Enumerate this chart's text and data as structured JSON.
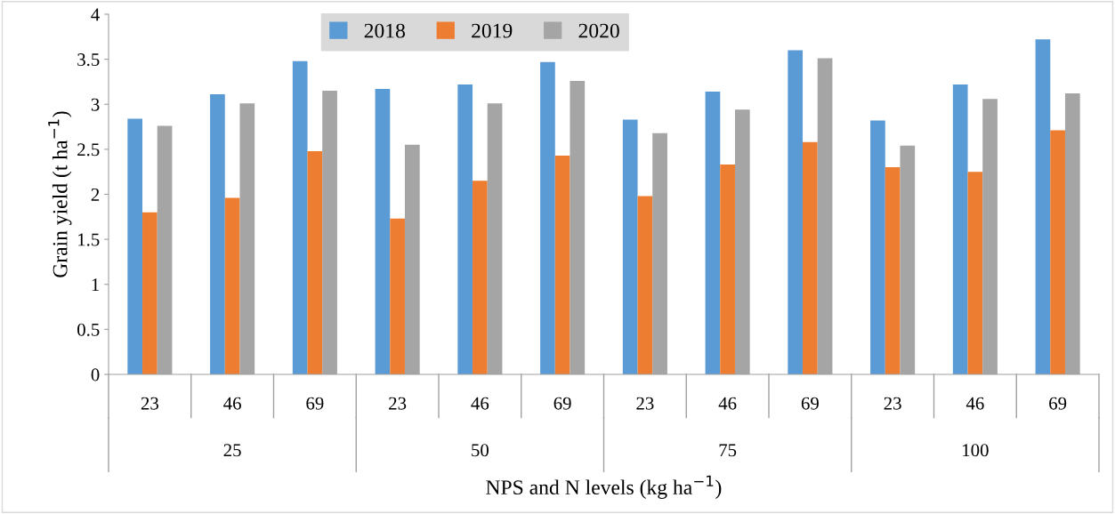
{
  "chart_data": {
    "type": "bar",
    "xlabel": "NPS and N levels (kg ha$^{−1}$)",
    "ylabel": "Grain yield (t ha$^{−1}$)",
    "categories": [
      "23",
      "46",
      "69",
      "23",
      "46",
      "69",
      "23",
      "46",
      "69",
      "23",
      "46",
      "69"
    ],
    "annotations": [
      "25",
      "50",
      "75",
      "100"
    ],
    "series": [
      {
        "name": "2018",
        "color": "#5b9bd5",
        "values": [
          2.84,
          3.11,
          3.48,
          3.17,
          3.22,
          3.47,
          2.83,
          3.14,
          3.6,
          2.82,
          3.22,
          3.72
        ]
      },
      {
        "name": "2019",
        "color": "#ed7d31",
        "values": [
          1.8,
          1.96,
          2.48,
          1.73,
          2.15,
          2.43,
          1.98,
          2.33,
          2.58,
          2.3,
          2.25,
          2.71
        ]
      },
      {
        "name": "2020",
        "color": "#a5a5a5",
        "values": [
          2.76,
          3.01,
          3.15,
          2.55,
          3.01,
          3.26,
          2.68,
          2.94,
          3.51,
          2.54,
          3.06,
          3.12
        ]
      }
    ],
    "ylim": [
      0,
      4
    ],
    "yticks": [
      0,
      0.5,
      1,
      1.5,
      2,
      2.5,
      3,
      3.5,
      4
    ],
    "legend": "top",
    "grid": false
  }
}
